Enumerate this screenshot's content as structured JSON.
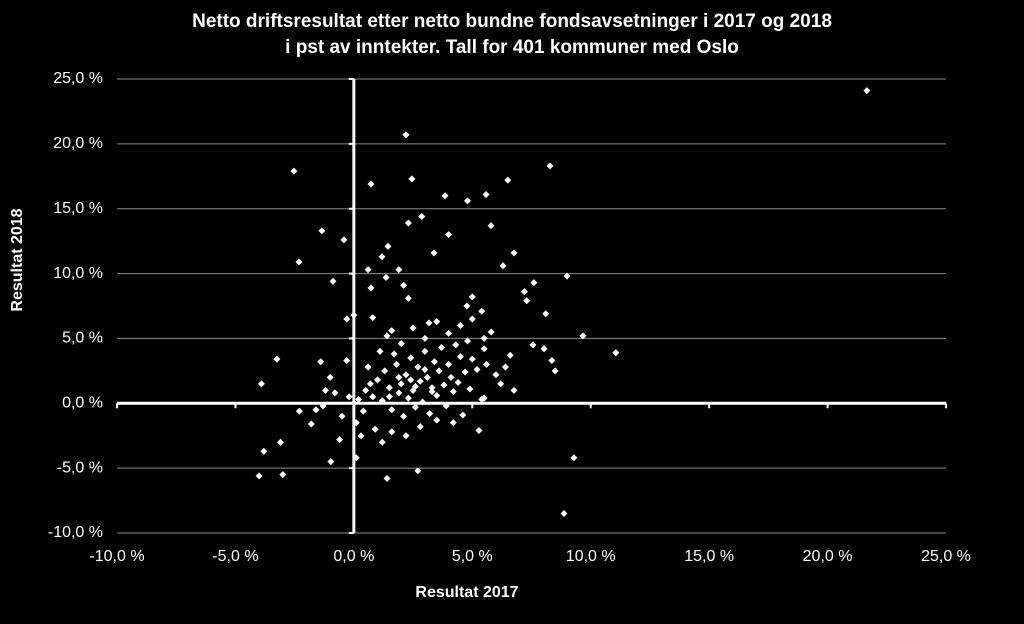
{
  "chart_data": {
    "type": "scatter",
    "title": [
      "Netto driftsresultat etter netto bundne fondsavsetninger i 2017 og 2018",
      "i pst av inntekter. Tall for 401 kommuner med Oslo"
    ],
    "x_label": "Resultat 2017",
    "y_label": "Resultat 2018",
    "xlim": [
      -10,
      25
    ],
    "ylim": [
      -10,
      25
    ],
    "xticks": [
      {
        "value": -10,
        "label": "-10,0 %"
      },
      {
        "value": -5,
        "label": "-5,0 %"
      },
      {
        "value": 0,
        "label": "0,0 %"
      },
      {
        "value": 5,
        "label": "5,0 %"
      },
      {
        "value": 10,
        "label": "10,0 %"
      },
      {
        "value": 15,
        "label": "15,0 %"
      },
      {
        "value": 20,
        "label": "20,0 %"
      },
      {
        "value": 25,
        "label": "25,0 %"
      }
    ],
    "yticks": [
      {
        "value": -10,
        "label": "-10,0 %"
      },
      {
        "value": -5,
        "label": "-5,0 %"
      },
      {
        "value": 0,
        "label": "0,0 %"
      },
      {
        "value": 5,
        "label": "5,0 %"
      },
      {
        "value": 10,
        "label": "10,0 %"
      },
      {
        "value": 15,
        "label": "15,0 %"
      },
      {
        "value": 20,
        "label": "20,0 %"
      },
      {
        "value": 25,
        "label": "25,0 %"
      }
    ],
    "grid": true,
    "series": [
      {
        "color": "#ffffff",
        "x": [
          21.66,
          -2.53,
          2.2,
          8.28,
          6.5,
          0.72,
          2.45,
          5.58,
          3.85,
          4.8,
          2.87,
          2.3,
          5.79,
          -1.35,
          -0.42,
          4.0,
          1.44,
          3.38,
          1.19,
          6.76,
          -2.32,
          0.6,
          1.9,
          6.3,
          1.36,
          -0.88,
          9.0,
          7.6,
          7.2,
          5.0,
          7.3,
          4.77,
          2.1,
          0.72,
          2.3,
          5.4,
          8.1,
          0.0,
          -0.3,
          0.8,
          1.6,
          3.17,
          9.67,
          11.06,
          6.6,
          7.56,
          8.03,
          8.36,
          8.5,
          -3.25,
          -3.9,
          -3.8,
          -4.0,
          -3.0,
          -3.1,
          -2.3,
          -0.97,
          0.1,
          1.4,
          2.7,
          8.87,
          9.29,
          5.28,
          6.76,
          5.5,
          0.2,
          0.5,
          0.8,
          1.0,
          1.2,
          1.3,
          1.5,
          1.6,
          1.8,
          1.9,
          2.0,
          2.1,
          2.2,
          2.3,
          2.4,
          2.5,
          2.6,
          2.7,
          2.8,
          2.9,
          3.0,
          3.1,
          3.2,
          3.3,
          3.4,
          3.5,
          3.6,
          3.7,
          3.8,
          3.9,
          4.0,
          4.1,
          4.2,
          4.3,
          4.4,
          4.5,
          4.6,
          4.7,
          4.8,
          4.9,
          5.0,
          5.2,
          5.4,
          5.5,
          5.6,
          5.8,
          6.0,
          6.2,
          6.4,
          0.1,
          0.3,
          -0.5,
          -0.8,
          -1.0,
          -1.2,
          -1.4,
          -1.6,
          -1.8,
          -0.3,
          0.6,
          1.1,
          1.4,
          1.7,
          2.0,
          2.5,
          3.0,
          3.5,
          4.0,
          4.5,
          5.0,
          5.5,
          0.4,
          0.9,
          1.2,
          1.6,
          2.2,
          2.8,
          3.5,
          4.2,
          0.0,
          -0.2,
          -0.6,
          -1.3,
          0.7,
          1.9,
          2.4,
          3.3,
          1.5,
          2.6,
          3.0
        ],
        "values": [
          24.1,
          17.9,
          20.7,
          18.3,
          17.2,
          16.9,
          17.3,
          16.1,
          16.0,
          15.6,
          14.4,
          13.9,
          13.7,
          13.3,
          12.6,
          13.0,
          12.1,
          11.6,
          11.3,
          11.6,
          10.9,
          10.3,
          10.3,
          10.6,
          9.7,
          9.4,
          9.8,
          9.3,
          8.6,
          8.2,
          7.9,
          7.5,
          9.1,
          8.9,
          8.1,
          7.1,
          6.9,
          6.8,
          6.5,
          6.6,
          5.6,
          6.2,
          5.2,
          3.9,
          3.7,
          4.5,
          4.2,
          3.3,
          2.5,
          3.4,
          1.5,
          -3.7,
          -5.6,
          -5.5,
          -3.0,
          -0.6,
          -4.5,
          -4.2,
          -5.8,
          -5.2,
          -8.5,
          -4.2,
          -2.1,
          1.0,
          0.4,
          0.3,
          1.0,
          0.5,
          1.8,
          0.2,
          2.5,
          1.2,
          -0.5,
          3.0,
          0.8,
          1.5,
          -1.0,
          2.2,
          0.4,
          3.5,
          1.0,
          -0.3,
          2.8,
          1.7,
          0.1,
          4.0,
          2.0,
          -0.8,
          1.2,
          3.2,
          0.6,
          2.5,
          4.3,
          1.4,
          -0.2,
          3.0,
          2.0,
          0.9,
          4.5,
          1.6,
          3.6,
          -0.9,
          2.4,
          4.8,
          1.1,
          3.4,
          2.6,
          0.3,
          4.2,
          3.0,
          5.5,
          2.2,
          1.5,
          2.8,
          -1.5,
          -2.5,
          -1.0,
          0.8,
          2.0,
          1.0,
          3.2,
          -0.5,
          -1.6,
          3.3,
          2.8,
          4.0,
          5.2,
          3.8,
          4.6,
          5.8,
          5.0,
          6.3,
          5.4,
          6.0,
          6.5,
          5.0,
          -0.6,
          -2.0,
          -3.0,
          -2.2,
          -2.5,
          -1.8,
          -1.3,
          -1.5,
          0.0,
          0.5,
          -2.8,
          -0.2,
          1.5,
          2.0,
          1.8,
          0.9,
          0.5,
          1.3,
          2.6
        ]
      }
    ]
  }
}
